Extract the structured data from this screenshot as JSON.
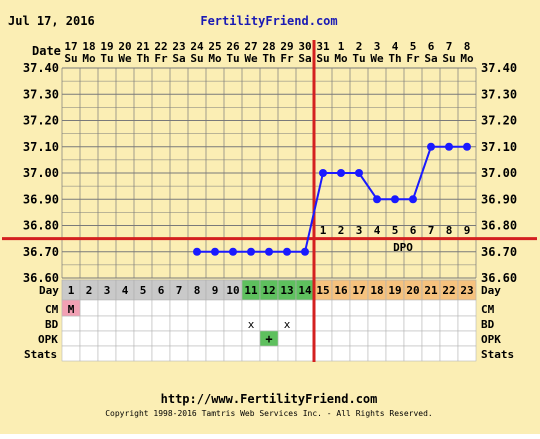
{
  "header": {
    "date": "Jul 17, 2016",
    "site": "FertilityFriend.com"
  },
  "row_labels": {
    "date": "Date",
    "day": "Day",
    "cm": "CM",
    "bd": "BD",
    "opk": "OPK",
    "stats": "Stats"
  },
  "dates": [
    {
      "d": "17",
      "w": "Su"
    },
    {
      "d": "18",
      "w": "Mo"
    },
    {
      "d": "19",
      "w": "Tu"
    },
    {
      "d": "20",
      "w": "We"
    },
    {
      "d": "21",
      "w": "Th"
    },
    {
      "d": "22",
      "w": "Fr"
    },
    {
      "d": "23",
      "w": "Sa"
    },
    {
      "d": "24",
      "w": "Su"
    },
    {
      "d": "25",
      "w": "Mo"
    },
    {
      "d": "26",
      "w": "Tu"
    },
    {
      "d": "27",
      "w": "We"
    },
    {
      "d": "28",
      "w": "Th"
    },
    {
      "d": "29",
      "w": "Fr"
    },
    {
      "d": "30",
      "w": "Sa"
    },
    {
      "d": "31",
      "w": "Su"
    },
    {
      "d": "1",
      "w": "Mo"
    },
    {
      "d": "2",
      "w": "Tu"
    },
    {
      "d": "3",
      "w": "We"
    },
    {
      "d": "4",
      "w": "Th"
    },
    {
      "d": "5",
      "w": "Fr"
    },
    {
      "d": "6",
      "w": "Sa"
    },
    {
      "d": "7",
      "w": "Su"
    },
    {
      "d": "8",
      "w": "Mo"
    }
  ],
  "cycle_days": [
    "1",
    "2",
    "3",
    "4",
    "5",
    "6",
    "7",
    "8",
    "9",
    "10",
    "11",
    "12",
    "13",
    "14",
    "15",
    "16",
    "17",
    "18",
    "19",
    "20",
    "21",
    "22",
    "23"
  ],
  "day_phase": [
    "gray",
    "gray",
    "gray",
    "gray",
    "gray",
    "gray",
    "gray",
    "gray",
    "gray",
    "gray",
    "green",
    "green",
    "green",
    "green",
    "orange",
    "orange",
    "orange",
    "orange",
    "orange",
    "orange",
    "orange",
    "orange",
    "orange"
  ],
  "cm": [
    {
      "day": 1,
      "text": "M"
    }
  ],
  "bd": [
    {
      "day": 11,
      "text": "x"
    },
    {
      "day": 13,
      "text": "x"
    }
  ],
  "opk": [
    {
      "day": 12,
      "text": "+"
    }
  ],
  "dpo": {
    "label": "DPO",
    "numbers": [
      "1",
      "2",
      "3",
      "4",
      "5",
      "6",
      "7",
      "8",
      "9"
    ],
    "start_day": 15
  },
  "chart_data": {
    "type": "line",
    "ylim": [
      36.6,
      37.4
    ],
    "y_ticks": [
      "37.40",
      "37.30",
      "37.20",
      "37.10",
      "37.00",
      "36.90",
      "36.80",
      "36.70",
      "36.60"
    ],
    "x": [
      "1",
      "2",
      "3",
      "4",
      "5",
      "6",
      "7",
      "8",
      "9",
      "10",
      "11",
      "12",
      "13",
      "14",
      "15",
      "16",
      "17",
      "18",
      "19",
      "20",
      "21",
      "22",
      "23"
    ],
    "series": [
      {
        "points": [
          {
            "day": 8,
            "temp": 36.7
          },
          {
            "day": 9,
            "temp": 36.7
          },
          {
            "day": 10,
            "temp": 36.7
          },
          {
            "day": 11,
            "temp": 36.7
          },
          {
            "day": 12,
            "temp": 36.7
          },
          {
            "day": 13,
            "temp": 36.7
          },
          {
            "day": 14,
            "temp": 36.7
          },
          {
            "day": 15,
            "temp": 37.0
          },
          {
            "day": 16,
            "temp": 37.0
          },
          {
            "day": 17,
            "temp": 37.0
          },
          {
            "day": 18,
            "temp": 36.9
          },
          {
            "day": 19,
            "temp": 36.9
          },
          {
            "day": 20,
            "temp": 36.9
          },
          {
            "day": 21,
            "temp": 37.1
          },
          {
            "day": 22,
            "temp": 37.1
          },
          {
            "day": 23,
            "temp": 37.1
          }
        ]
      }
    ],
    "coverline": 36.75,
    "ovulation_day": 14,
    "grid": true
  },
  "colors": {
    "background": "#fbeeb4",
    "grid": "#7a7a7a",
    "series": "#1a1aff",
    "coverline": "#d42020",
    "ovulation": "#d42020",
    "title_blue": "#1a1ab4",
    "phase_gray": "#c9c9c9",
    "phase_green": "#5ec05e",
    "phase_orange": "#f6c27e",
    "cm_pink": "#f2a0b4",
    "opk_green": "#5ec05e"
  },
  "footer": {
    "url": "http://www.FertilityFriend.com",
    "copyright": "Copyright 1998-2016 Tamtris Web Services Inc. - All Rights Reserved."
  }
}
